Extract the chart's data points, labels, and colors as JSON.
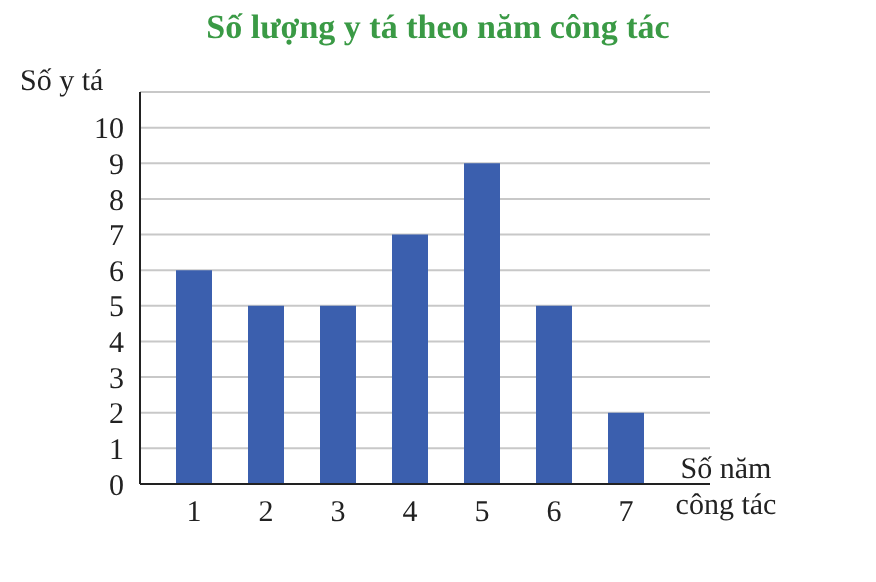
{
  "chart_data": {
    "type": "bar",
    "title": "Số lượng y tá theo năm công tác",
    "xlabel": "Số năm công tác",
    "ylabel": "Số y tá",
    "categories": [
      "1",
      "2",
      "3",
      "4",
      "5",
      "6",
      "7"
    ],
    "values": [
      6,
      5,
      5,
      7,
      9,
      5,
      2
    ],
    "color": "#3b5fae",
    "ylim": [
      0,
      11
    ],
    "yticks": [
      0,
      1,
      2,
      3,
      4,
      5,
      6,
      7,
      8,
      9,
      10
    ],
    "grid": "y"
  }
}
